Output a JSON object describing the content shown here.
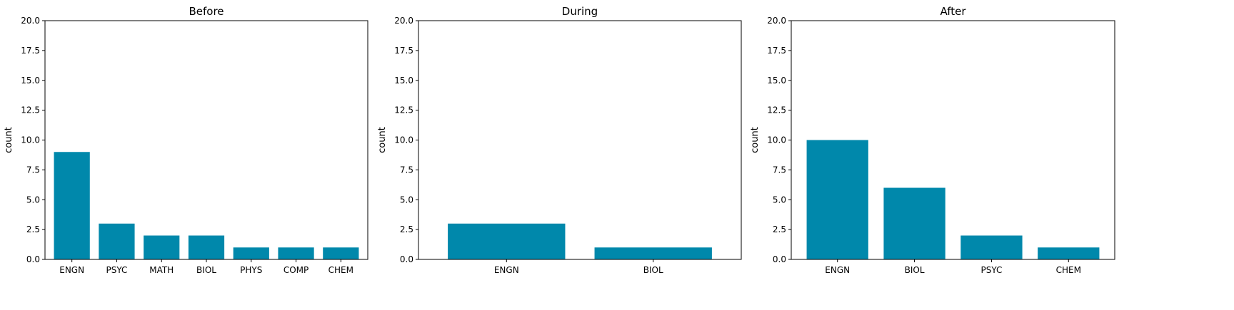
{
  "bar_color": "#0088ab",
  "chart_data": [
    {
      "type": "bar",
      "title": "Before",
      "xlabel": "",
      "ylabel": "count",
      "ylim": [
        0,
        20
      ],
      "yticks": [
        "0.0",
        "2.5",
        "5.0",
        "7.5",
        "10.0",
        "12.5",
        "15.0",
        "17.5",
        "20.0"
      ],
      "categories": [
        "ENGN",
        "PSYC",
        "MATH",
        "BIOL",
        "PHYS",
        "COMP",
        "CHEM"
      ],
      "values": [
        9,
        3,
        2,
        2,
        1,
        1,
        1
      ],
      "grid": false
    },
    {
      "type": "bar",
      "title": "During",
      "xlabel": "",
      "ylabel": "count",
      "ylim": [
        0,
        20
      ],
      "yticks": [
        "0.0",
        "2.5",
        "5.0",
        "7.5",
        "10.0",
        "12.5",
        "15.0",
        "17.5",
        "20.0"
      ],
      "categories": [
        "ENGN",
        "BIOL"
      ],
      "values": [
        3,
        1
      ],
      "grid": false
    },
    {
      "type": "bar",
      "title": "After",
      "xlabel": "",
      "ylabel": "count",
      "ylim": [
        0,
        20
      ],
      "yticks": [
        "0.0",
        "2.5",
        "5.0",
        "7.5",
        "10.0",
        "12.5",
        "15.0",
        "17.5",
        "20.0"
      ],
      "categories": [
        "ENGN",
        "BIOL",
        "PSYC",
        "CHEM"
      ],
      "values": [
        10,
        6,
        2,
        1
      ],
      "grid": false
    }
  ]
}
